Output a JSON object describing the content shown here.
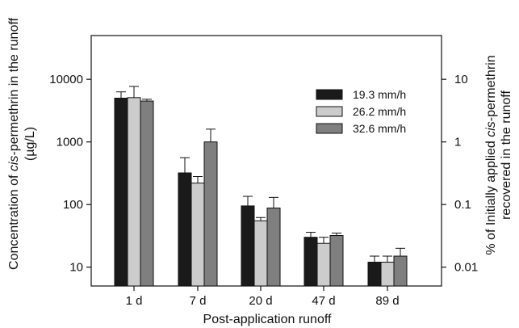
{
  "chart_data": {
    "type": "bar",
    "categories": [
      "1 d",
      "7 d",
      "20 d",
      "47 d",
      "89 d"
    ],
    "series": [
      {
        "name": "19.3 mm/h",
        "color": "#1a1a1a",
        "values": [
          5000,
          320,
          95,
          30,
          12
        ],
        "err_upper": [
          6300,
          560,
          135,
          36,
          15
        ]
      },
      {
        "name": "26.2 mm/h",
        "color": "#cccccc",
        "values": [
          5100,
          220,
          55,
          24,
          12
        ],
        "err_upper": [
          7700,
          280,
          62,
          30,
          15
        ]
      },
      {
        "name": "32.6 mm/h",
        "color": "#7f7f7f",
        "values": [
          4500,
          1000,
          88,
          32,
          15
        ],
        "err_upper": [
          4800,
          1600,
          130,
          35,
          20
        ]
      }
    ],
    "ylabel_parts": [
      "Concentration of ",
      "cis",
      "-permethrin in the runoff"
    ],
    "ylabel_unit_parts": [
      "(",
      "µ",
      "g/L)"
    ],
    "y2label_parts": [
      "% of Initially applied ",
      "cis",
      "-permethrin"
    ],
    "y2label_line2": "recovered in the runoff",
    "xlabel": "Post-application runoff",
    "yscale": "log",
    "ylim": [
      5,
      50000
    ],
    "yticks": [
      10,
      100,
      1000,
      10000
    ],
    "yticklabels": [
      "10",
      "100",
      "1000",
      "10000"
    ],
    "y2ticks": [
      0.01,
      0.1,
      1,
      10
    ],
    "y2ticklabels": [
      "0.01",
      "0.1",
      "1",
      "10"
    ],
    "y2_per_y1": 0.001,
    "legend_position": "upper-right"
  }
}
